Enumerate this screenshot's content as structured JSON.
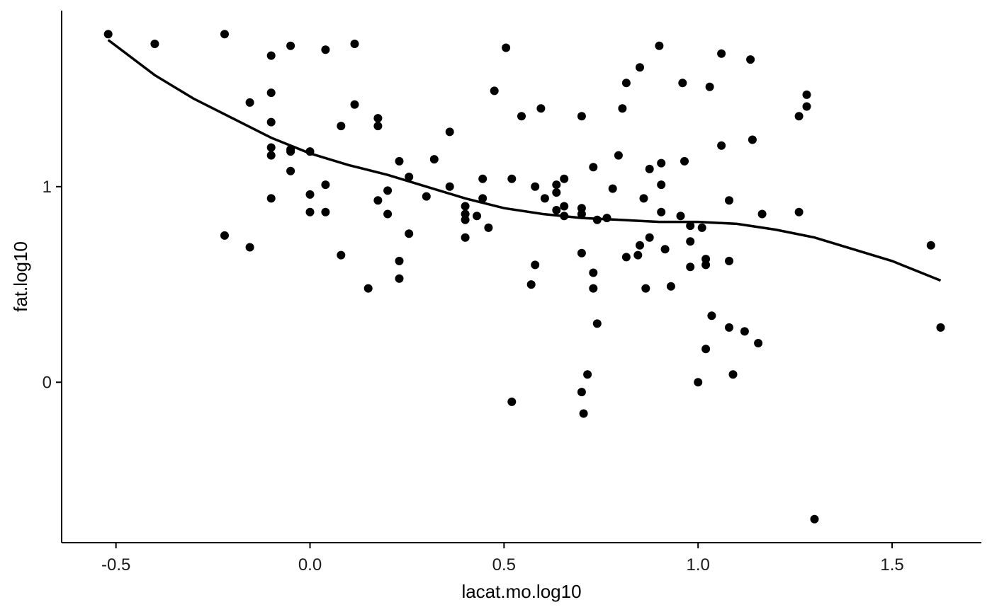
{
  "chart_data": {
    "type": "scatter",
    "title": "",
    "xlabel": "lacat.mo.log10",
    "ylabel": "fat.log10",
    "xlim": [
      -0.64,
      1.73
    ],
    "ylim": [
      -0.82,
      1.9
    ],
    "x_ticks": [
      {
        "value": -0.5,
        "label": "-0.5"
      },
      {
        "value": 0.0,
        "label": "0.0"
      },
      {
        "value": 0.5,
        "label": "0.5"
      },
      {
        "value": 1.0,
        "label": "1.0"
      },
      {
        "value": 1.5,
        "label": "1.5"
      }
    ],
    "y_ticks": [
      {
        "value": 0,
        "label": "0"
      },
      {
        "value": 1,
        "label": "1"
      }
    ],
    "grid": false,
    "legend": "none",
    "colors": {
      "points": "#000000",
      "line": "#000000",
      "axis": "#000000"
    },
    "points": [
      [
        -0.52,
        1.78
      ],
      [
        -0.4,
        1.73
      ],
      [
        -0.22,
        1.78
      ],
      [
        -0.22,
        0.75
      ],
      [
        -0.155,
        1.43
      ],
      [
        -0.155,
        0.69
      ],
      [
        -0.1,
        1.67
      ],
      [
        -0.1,
        1.48
      ],
      [
        -0.1,
        1.33
      ],
      [
        -0.1,
        1.2
      ],
      [
        -0.1,
        1.16
      ],
      [
        -0.1,
        0.94
      ],
      [
        -0.05,
        1.72
      ],
      [
        -0.05,
        1.19
      ],
      [
        -0.05,
        1.18
      ],
      [
        -0.05,
        1.08
      ],
      [
        0.0,
        1.18
      ],
      [
        0.0,
        0.96
      ],
      [
        0.0,
        0.87
      ],
      [
        0.04,
        1.7
      ],
      [
        0.04,
        1.01
      ],
      [
        0.04,
        0.87
      ],
      [
        0.08,
        1.31
      ],
      [
        0.08,
        0.65
      ],
      [
        0.115,
        1.73
      ],
      [
        0.115,
        1.42
      ],
      [
        0.15,
        0.48
      ],
      [
        0.175,
        1.35
      ],
      [
        0.175,
        1.31
      ],
      [
        0.175,
        0.93
      ],
      [
        0.2,
        0.98
      ],
      [
        0.2,
        0.86
      ],
      [
        0.23,
        1.13
      ],
      [
        0.23,
        0.62
      ],
      [
        0.23,
        0.53
      ],
      [
        0.255,
        1.05
      ],
      [
        0.255,
        0.76
      ],
      [
        0.3,
        0.95
      ],
      [
        0.32,
        1.14
      ],
      [
        0.36,
        1.28
      ],
      [
        0.36,
        1.0
      ],
      [
        0.4,
        0.9
      ],
      [
        0.4,
        0.86
      ],
      [
        0.4,
        0.83
      ],
      [
        0.4,
        0.74
      ],
      [
        0.43,
        0.85
      ],
      [
        0.445,
        1.04
      ],
      [
        0.445,
        0.94
      ],
      [
        0.46,
        0.79
      ],
      [
        0.475,
        1.49
      ],
      [
        0.505,
        1.71
      ],
      [
        0.52,
        1.04
      ],
      [
        0.52,
        -0.1
      ],
      [
        0.545,
        1.36
      ],
      [
        0.57,
        0.5
      ],
      [
        0.58,
        1.0
      ],
      [
        0.58,
        0.6
      ],
      [
        0.595,
        1.4
      ],
      [
        0.605,
        0.94
      ],
      [
        0.635,
        1.01
      ],
      [
        0.635,
        0.97
      ],
      [
        0.635,
        0.88
      ],
      [
        0.655,
        1.04
      ],
      [
        0.655,
        0.9
      ],
      [
        0.655,
        0.85
      ],
      [
        0.7,
        1.36
      ],
      [
        0.7,
        0.89
      ],
      [
        0.7,
        0.86
      ],
      [
        0.7,
        0.66
      ],
      [
        0.7,
        -0.05
      ],
      [
        0.705,
        -0.16
      ],
      [
        0.715,
        0.04
      ],
      [
        0.73,
        1.1
      ],
      [
        0.73,
        0.56
      ],
      [
        0.73,
        0.48
      ],
      [
        0.74,
        0.83
      ],
      [
        0.74,
        0.3
      ],
      [
        0.765,
        0.84
      ],
      [
        0.78,
        0.99
      ],
      [
        0.795,
        1.16
      ],
      [
        0.805,
        1.4
      ],
      [
        0.815,
        1.53
      ],
      [
        0.815,
        0.64
      ],
      [
        0.845,
        0.65
      ],
      [
        0.85,
        0.7
      ],
      [
        0.85,
        1.61
      ],
      [
        0.86,
        0.94
      ],
      [
        0.865,
        0.48
      ],
      [
        0.875,
        1.09
      ],
      [
        0.875,
        0.74
      ],
      [
        0.9,
        1.72
      ],
      [
        0.905,
        1.12
      ],
      [
        0.905,
        1.01
      ],
      [
        0.905,
        0.87
      ],
      [
        0.915,
        0.68
      ],
      [
        0.93,
        0.49
      ],
      [
        0.955,
        0.85
      ],
      [
        0.96,
        1.53
      ],
      [
        0.965,
        1.13
      ],
      [
        0.98,
        0.8
      ],
      [
        0.98,
        0.72
      ],
      [
        0.98,
        0.59
      ],
      [
        1.0,
        0.0
      ],
      [
        1.01,
        0.79
      ],
      [
        1.02,
        0.63
      ],
      [
        1.02,
        0.6
      ],
      [
        1.02,
        0.17
      ],
      [
        1.03,
        1.51
      ],
      [
        1.035,
        0.34
      ],
      [
        1.06,
        1.68
      ],
      [
        1.06,
        1.21
      ],
      [
        1.08,
        0.93
      ],
      [
        1.08,
        0.62
      ],
      [
        1.08,
        0.28
      ],
      [
        1.09,
        0.04
      ],
      [
        1.12,
        0.26
      ],
      [
        1.135,
        1.65
      ],
      [
        1.14,
        1.24
      ],
      [
        1.155,
        0.2
      ],
      [
        1.165,
        0.86
      ],
      [
        1.26,
        1.36
      ],
      [
        1.26,
        0.87
      ],
      [
        1.28,
        1.47
      ],
      [
        1.28,
        1.41
      ],
      [
        1.3,
        -0.7
      ],
      [
        1.6,
        0.7
      ],
      [
        1.625,
        0.28
      ]
    ],
    "smooth_line": [
      [
        -0.52,
        1.75
      ],
      [
        -0.4,
        1.57
      ],
      [
        -0.3,
        1.45
      ],
      [
        -0.2,
        1.35
      ],
      [
        -0.1,
        1.25
      ],
      [
        0.0,
        1.17
      ],
      [
        0.1,
        1.11
      ],
      [
        0.2,
        1.06
      ],
      [
        0.3,
        1.0
      ],
      [
        0.4,
        0.94
      ],
      [
        0.5,
        0.89
      ],
      [
        0.6,
        0.86
      ],
      [
        0.7,
        0.84
      ],
      [
        0.8,
        0.83
      ],
      [
        0.9,
        0.82
      ],
      [
        1.0,
        0.82
      ],
      [
        1.1,
        0.81
      ],
      [
        1.2,
        0.78
      ],
      [
        1.3,
        0.74
      ],
      [
        1.4,
        0.68
      ],
      [
        1.5,
        0.62
      ],
      [
        1.6,
        0.54
      ],
      [
        1.625,
        0.52
      ]
    ]
  }
}
